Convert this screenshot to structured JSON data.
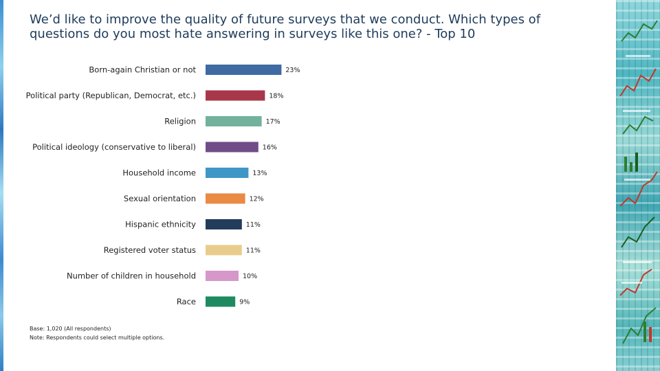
{
  "title": "We’d like to improve the quality of future surveys that we conduct. Which types of questions do you most hate answering in surveys like this one? - Top 10",
  "footnotes": {
    "base": "Base: 1,020 (All respondents)",
    "note": "Note: Respondents could select multiple options."
  },
  "chart_data": {
    "type": "bar",
    "orientation": "horizontal",
    "categories": [
      "Born-again Christian or not",
      "Political party (Republican, Democrat, etc.)",
      "Religion",
      "Political ideology (conservative to liberal)",
      "Household income",
      "Sexual orientation",
      "Hispanic ethnicity",
      "Registered voter status",
      "Number of children in household",
      "Race"
    ],
    "values": [
      23,
      18,
      17,
      16,
      13,
      12,
      11,
      11,
      10,
      9
    ],
    "value_labels": [
      "23%",
      "18%",
      "17%",
      "16%",
      "13%",
      "12%",
      "11%",
      "11%",
      "10%",
      "9%"
    ],
    "unit": "%",
    "colors": [
      "#3f6aa2",
      "#a9374a",
      "#72b29d",
      "#704d87",
      "#3f97c7",
      "#e98a45",
      "#233c5c",
      "#e9cc8c",
      "#d697c9",
      "#1f8a5f"
    ],
    "xlim": [
      0,
      100
    ],
    "grid": false,
    "legend": "none"
  }
}
